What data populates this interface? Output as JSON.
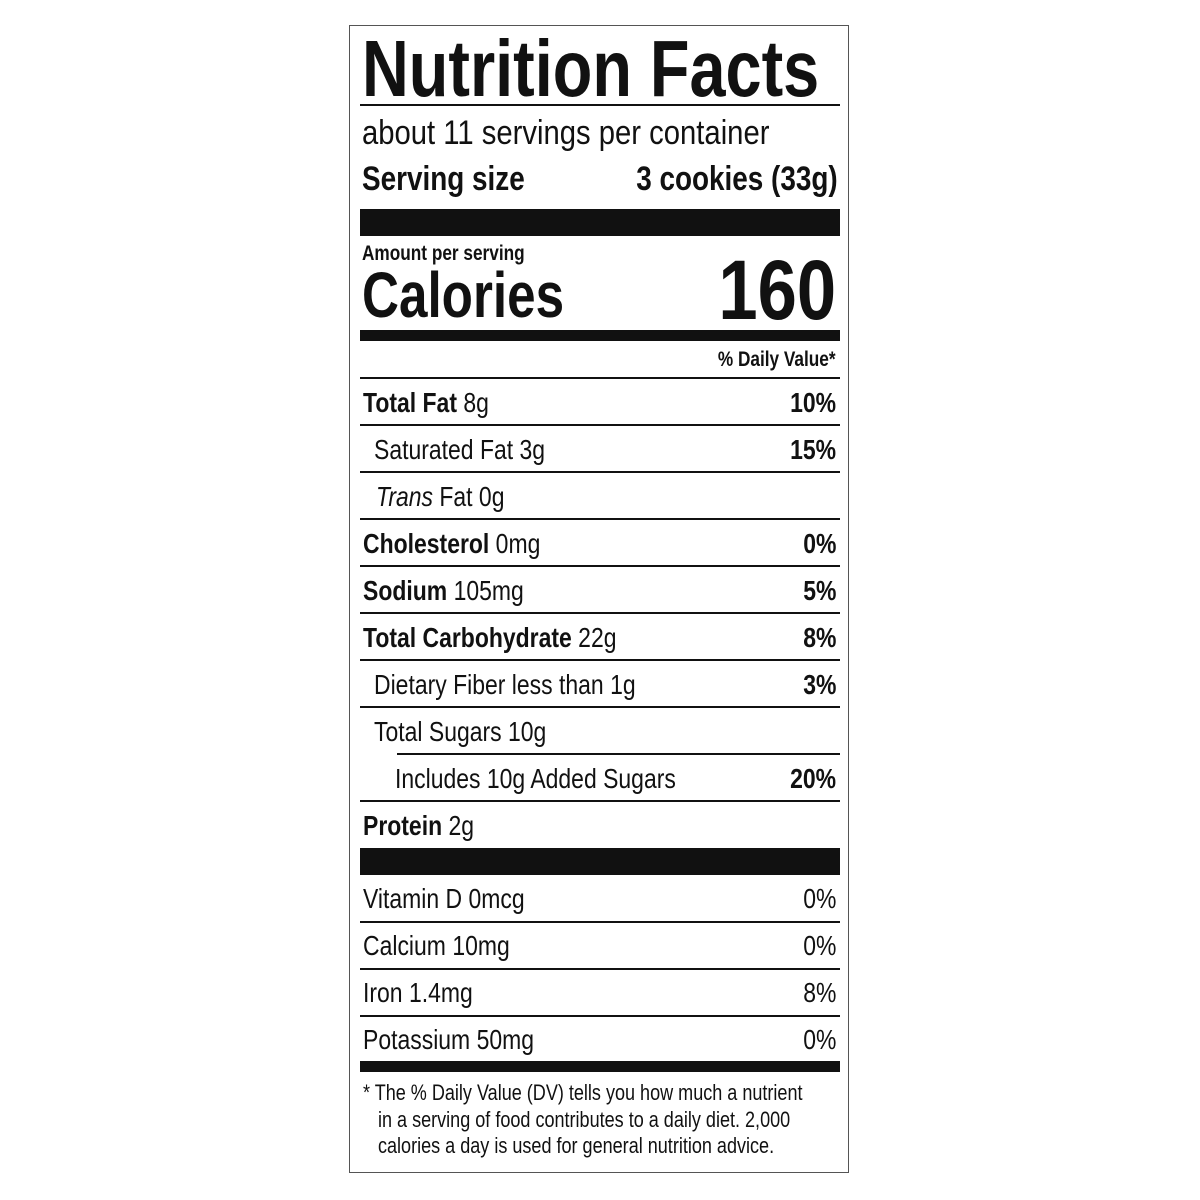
{
  "title": "Nutrition Facts",
  "servings_per_container": "about 11 servings per container",
  "serving_size": {
    "label": "Serving size",
    "value": "3 cookies (33g)"
  },
  "amount_per_serving": "Amount per serving",
  "calories": {
    "label": "Calories",
    "value": "160"
  },
  "dv_header": "% Daily Value*",
  "nutrients": [
    {
      "name": "Total Fat",
      "amount": "8g",
      "dv": "10%"
    },
    {
      "name": "Saturated Fat",
      "amount": "3g",
      "dv": "15%"
    },
    {
      "name": "Trans",
      "name_suffix": "Fat",
      "amount": "0g",
      "dv": ""
    },
    {
      "name": "Cholesterol",
      "amount": "0mg",
      "dv": "0%"
    },
    {
      "name": "Sodium",
      "amount": "105mg",
      "dv": "5%"
    },
    {
      "name": "Total Carbohydrate",
      "amount": "22g",
      "dv": "8%"
    },
    {
      "name": "Dietary Fiber",
      "amount": "less than 1g",
      "dv": "3%"
    },
    {
      "name": "Total Sugars",
      "amount": "10g",
      "dv": ""
    },
    {
      "name": "Includes 10g Added Sugars",
      "amount": "",
      "dv": "20%"
    },
    {
      "name": "Protein",
      "amount": "2g",
      "dv": ""
    }
  ],
  "vitamins": [
    {
      "name": "Vitamin D",
      "amount": "0mcg",
      "dv": "0%"
    },
    {
      "name": "Calcium",
      "amount": "10mg",
      "dv": "0%"
    },
    {
      "name": "Iron",
      "amount": "1.4mg",
      "dv": "8%"
    },
    {
      "name": "Potassium",
      "amount": "50mg",
      "dv": "0%"
    }
  ],
  "footnote": {
    "line1": "* The % Daily Value (DV) tells you how much a nutrient",
    "line2": "in a serving of food contributes to a daily diet. 2,000",
    "line3": "calories a day is used for general nutrition advice."
  }
}
